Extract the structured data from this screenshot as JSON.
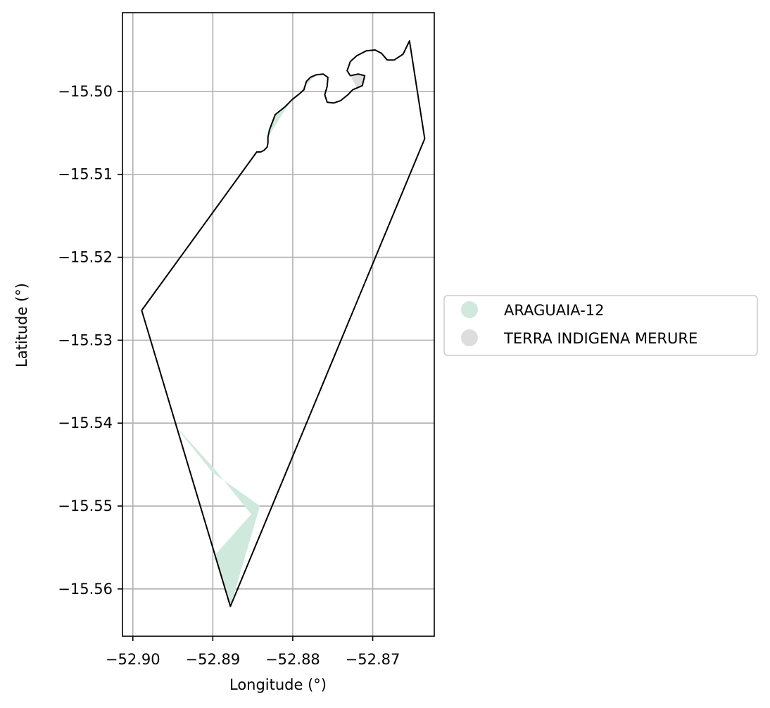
{
  "chart_data": {
    "type": "map",
    "xlabel": "Longitude (°)",
    "ylabel": "Latitude (°)",
    "xlim": [
      -52.9013,
      -52.8623
    ],
    "ylim": [
      -15.5657,
      -15.4905
    ],
    "x_ticks": [
      {
        "value": -52.9,
        "label": "−52.90"
      },
      {
        "value": -52.89,
        "label": "−52.89"
      },
      {
        "value": -52.88,
        "label": "−52.88"
      },
      {
        "value": -52.87,
        "label": "−52.87"
      }
    ],
    "y_ticks": [
      {
        "value": -15.5,
        "label": "−15.50"
      },
      {
        "value": -15.51,
        "label": "−15.51"
      },
      {
        "value": -15.52,
        "label": "−15.52"
      },
      {
        "value": -15.53,
        "label": "−15.53"
      },
      {
        "value": -15.54,
        "label": "−15.54"
      },
      {
        "value": -15.55,
        "label": "−15.55"
      },
      {
        "value": -15.56,
        "label": "−15.56"
      }
    ],
    "grid": true,
    "legend_placement": "center-right, outside axes",
    "legend": [
      {
        "name": "ARAGUAIA-12",
        "color": "#cfe9dc"
      },
      {
        "name": "TERRA INDIGENA MERURE",
        "color": "#dddddd"
      }
    ],
    "outline_color": "#000000",
    "outline": [
      [
        -52.8989,
        -15.5264
      ],
      [
        -52.8845,
        -15.5073
      ],
      [
        -52.884,
        -15.5073
      ],
      [
        -52.8836,
        -15.5071
      ],
      [
        -52.8832,
        -15.5067
      ],
      [
        -52.8831,
        -15.5062
      ],
      [
        -52.8831,
        -15.5055
      ],
      [
        -52.8829,
        -15.5046
      ],
      [
        -52.8822,
        -15.5028
      ],
      [
        -52.8809,
        -15.5018
      ],
      [
        -52.8801,
        -15.501
      ],
      [
        -52.8793,
        -15.5004
      ],
      [
        -52.8786,
        -15.4998
      ],
      [
        -52.8783,
        -15.4988
      ],
      [
        -52.8778,
        -15.4983
      ],
      [
        -52.8771,
        -15.498
      ],
      [
        -52.8762,
        -15.4979
      ],
      [
        -52.8756,
        -15.4983
      ],
      [
        -52.8757,
        -15.4994
      ],
      [
        -52.876,
        -15.5004
      ],
      [
        -52.8757,
        -15.5013
      ],
      [
        -52.8749,
        -15.5014
      ],
      [
        -52.874,
        -15.5011
      ],
      [
        -52.8731,
        -15.5004
      ],
      [
        -52.8725,
        -15.4998
      ],
      [
        -52.8713,
        -15.4993
      ],
      [
        -52.871,
        -15.4981
      ],
      [
        -52.8718,
        -15.4979
      ],
      [
        -52.8728,
        -15.4981
      ],
      [
        -52.8732,
        -15.4975
      ],
      [
        -52.8728,
        -15.4964
      ],
      [
        -52.872,
        -15.4957
      ],
      [
        -52.8708,
        -15.4951
      ],
      [
        -52.8697,
        -15.495
      ],
      [
        -52.8689,
        -15.4954
      ],
      [
        -52.8682,
        -15.4962
      ],
      [
        -52.8673,
        -15.4962
      ],
      [
        -52.8662,
        -15.4955
      ],
      [
        -52.8654,
        -15.4939
      ],
      [
        -52.8635,
        -15.5057
      ],
      [
        -52.8878,
        -15.5621
      ],
      [
        -52.8989,
        -15.5264
      ]
    ],
    "series": [
      {
        "name": "ARAGUAIA-12",
        "color": "#cfe9dc",
        "polygons": [
          [
            [
              -52.895,
              -15.54
            ],
            [
              -52.8898,
              -15.5455
            ],
            [
              -52.8852,
              -15.551
            ],
            [
              -52.8898,
              -15.556
            ],
            [
              -52.8892,
              -15.558
            ],
            [
              -52.8878,
              -15.5621
            ],
            [
              -52.8841,
              -15.55
            ],
            [
              -52.887,
              -15.548
            ],
            [
              -52.89,
              -15.546
            ],
            [
              -52.895,
              -15.54
            ]
          ],
          [
            [
              -52.8831,
              -15.5055
            ],
            [
              -52.8829,
              -15.5046
            ],
            [
              -52.8822,
              -15.5028
            ],
            [
              -52.8809,
              -15.5018
            ],
            [
              -52.8793,
              -15.5004
            ],
            [
              -52.8783,
              -15.4988
            ],
            [
              -52.8771,
              -15.498
            ],
            [
              -52.879,
              -15.5
            ],
            [
              -52.8805,
              -15.5015
            ],
            [
              -52.8831,
              -15.5055
            ]
          ]
        ]
      },
      {
        "name": "TERRA INDIGENA MERURE",
        "color": "#dddddd",
        "polygons": [
          [
            [
              -52.876,
              -15.4985
            ],
            [
              -52.8757,
              -15.4994
            ],
            [
              -52.876,
              -15.5004
            ],
            [
              -52.8756,
              -15.5
            ],
            [
              -52.876,
              -15.4985
            ]
          ],
          [
            [
              -52.8725,
              -15.4998
            ],
            [
              -52.8713,
              -15.4993
            ],
            [
              -52.871,
              -15.4981
            ],
            [
              -52.8718,
              -15.4979
            ],
            [
              -52.8728,
              -15.4981
            ],
            [
              -52.872,
              -15.4995
            ],
            [
              -52.8725,
              -15.4998
            ]
          ]
        ]
      }
    ]
  }
}
